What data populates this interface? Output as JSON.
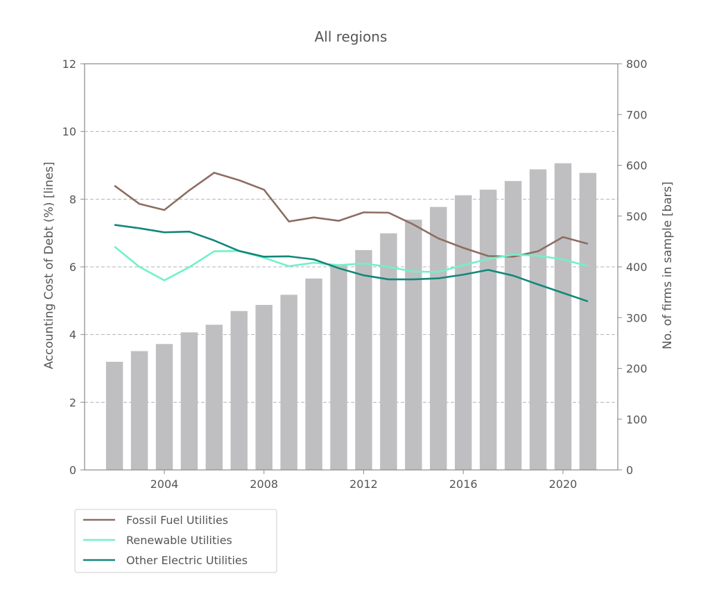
{
  "chart_data": {
    "type": "bar+line",
    "title": "All regions",
    "xlabel": "",
    "ylabel_left": "Accounting Cost of Debt (%) [lines]",
    "ylabel_right": "No. of firms in sample  [bars]",
    "x_ticks": [
      "2004",
      "2008",
      "2012",
      "2016",
      "2020"
    ],
    "y_left_ticks": [
      "0",
      "2",
      "4",
      "6",
      "8",
      "10",
      "12"
    ],
    "y_right_ticks": [
      "0",
      "100",
      "200",
      "300",
      "400",
      "500",
      "600",
      "700",
      "800"
    ],
    "x_range": [
      2000.8,
      2022.2
    ],
    "ylim_left": [
      0,
      12
    ],
    "ylim_right": [
      0,
      800
    ],
    "grid": "horizontal dashed",
    "legend_placement": "below-left",
    "years": [
      2002,
      2003,
      2004,
      2005,
      2006,
      2007,
      2008,
      2009,
      2010,
      2011,
      2012,
      2013,
      2014,
      2015,
      2016,
      2017,
      2018,
      2019,
      2020,
      2021
    ],
    "bars": {
      "name": "No. of firms in sample",
      "color": "#bfbfc1",
      "values": [
        213,
        234,
        248,
        271,
        286,
        313,
        325,
        345,
        377,
        403,
        433,
        466,
        493,
        518,
        541,
        552,
        569,
        592,
        604,
        585
      ]
    },
    "series": [
      {
        "name": "Fossil Fuel Utilities",
        "color": "#8c6d62",
        "values": [
          8.4,
          7.86,
          7.68,
          8.26,
          8.78,
          8.56,
          8.28,
          7.34,
          7.46,
          7.36,
          7.61,
          7.6,
          7.25,
          6.84,
          6.56,
          6.32,
          6.3,
          6.46,
          6.88,
          6.68
        ]
      },
      {
        "name": "Renewable Utilities",
        "color": "#6ff2c9",
        "values": [
          6.6,
          6.0,
          5.6,
          5.99,
          6.46,
          6.47,
          6.27,
          6.02,
          6.12,
          6.05,
          6.1,
          6.0,
          5.86,
          5.85,
          6.05,
          6.23,
          6.36,
          6.33,
          6.22,
          6.02
        ]
      },
      {
        "name": "Other Electric Utilities",
        "color": "#11877a",
        "values": [
          7.24,
          7.14,
          7.02,
          7.04,
          6.78,
          6.47,
          6.3,
          6.31,
          6.22,
          5.96,
          5.75,
          5.63,
          5.63,
          5.66,
          5.77,
          5.91,
          5.74,
          5.48,
          5.23,
          4.98
        ]
      }
    ]
  }
}
